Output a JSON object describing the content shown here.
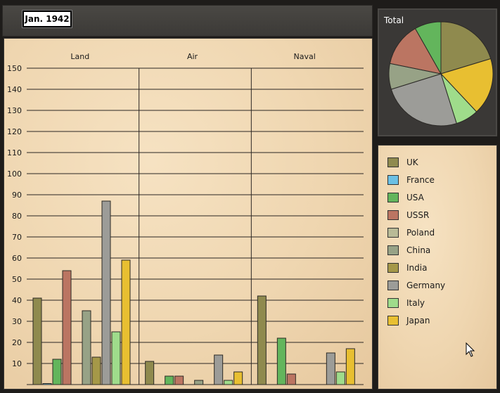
{
  "header": {
    "date": "Jan. 1942"
  },
  "colors": {
    "UK": "#8f8a4e",
    "France": "#6cc0e4",
    "USA": "#63b55c",
    "USSR": "#bb7562",
    "Poland": "#b8ba96",
    "China": "#97a286",
    "India": "#a59848",
    "Germany": "#9c9c98",
    "Italy": "#9fdc8b",
    "Japan": "#e8bf31"
  },
  "legend": {
    "items": [
      "UK",
      "France",
      "USA",
      "USSR",
      "Poland",
      "China",
      "India",
      "Germany",
      "Italy",
      "Japan"
    ]
  },
  "chart_data": [
    {
      "type": "bar",
      "groups": [
        "Land",
        "Air",
        "Naval"
      ],
      "ylim": [
        0,
        150
      ],
      "yticks": [
        10,
        20,
        30,
        40,
        50,
        60,
        70,
        80,
        90,
        100,
        110,
        120,
        130,
        140,
        150
      ],
      "grid": true,
      "series": [
        {
          "name": "UK",
          "values": [
            41,
            11,
            42
          ]
        },
        {
          "name": "France",
          "values": [
            0.5,
            0,
            0
          ]
        },
        {
          "name": "USA",
          "values": [
            12,
            4,
            22
          ]
        },
        {
          "name": "USSR",
          "values": [
            54,
            4,
            5
          ]
        },
        {
          "name": "Poland",
          "values": [
            0,
            0,
            0
          ]
        },
        {
          "name": "China",
          "values": [
            35,
            2,
            0
          ]
        },
        {
          "name": "India",
          "values": [
            13,
            0,
            0
          ]
        },
        {
          "name": "Germany",
          "values": [
            87,
            14,
            15
          ]
        },
        {
          "name": "Italy",
          "values": [
            25,
            2,
            6
          ]
        },
        {
          "name": "Japan",
          "values": [
            59,
            6,
            17
          ]
        }
      ]
    },
    {
      "type": "pie",
      "title": "Total",
      "slices": [
        {
          "name": "UK",
          "value": 94
        },
        {
          "name": "Japan",
          "value": 82
        },
        {
          "name": "Italy",
          "value": 33
        },
        {
          "name": "Germany",
          "value": 116
        },
        {
          "name": "China",
          "value": 37
        },
        {
          "name": "USSR",
          "value": 63
        },
        {
          "name": "USA",
          "value": 38
        }
      ]
    }
  ]
}
